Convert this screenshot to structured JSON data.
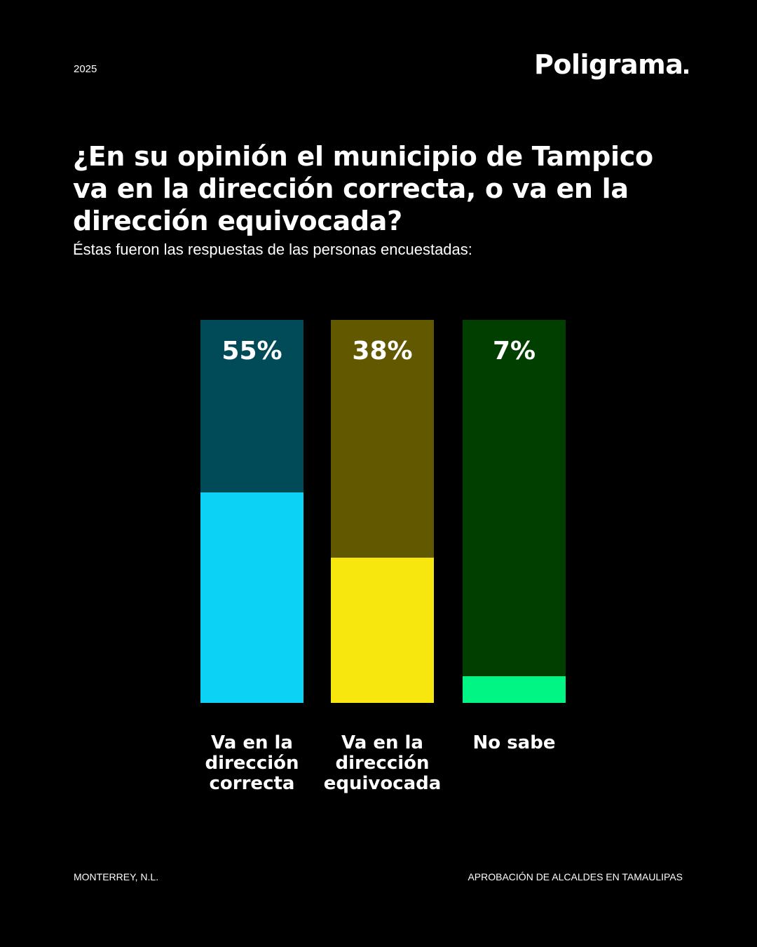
{
  "header": {
    "year": "2025",
    "brand": "Poligrama"
  },
  "footer": {
    "left": "MONTERREY, N.L.",
    "right": "APROBACIÓN DE ALCALDES EN TAMAULIPAS"
  },
  "chart_data": {
    "type": "bar",
    "title": "¿En su opinión el municipio de Tampico va en la dirección correcta, o va en la dirección equivocada?",
    "subtitle": "Éstas fueron las respuestas de las personas encuestadas:",
    "categories": [
      "Va en la dirección correcta",
      "Va en la dirección equivocada",
      "No sabe"
    ],
    "values": [
      55,
      38,
      7
    ],
    "labels": [
      "55%",
      "38%",
      "7%"
    ],
    "ylim": [
      0,
      100
    ],
    "colors": {
      "fill": [
        "#0CD3F5",
        "#F8E60F",
        "#00F585"
      ],
      "track": [
        "#004B57",
        "#615800",
        "#003F00"
      ]
    }
  }
}
